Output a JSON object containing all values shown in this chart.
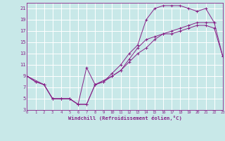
{
  "xlabel": "Windchill (Refroidissement éolien,°C)",
  "bg_color": "#c8e8e8",
  "grid_color": "#ffffff",
  "line_color": "#882288",
  "xlim": [
    0,
    23
  ],
  "ylim": [
    3,
    22
  ],
  "yticks": [
    3,
    5,
    7,
    9,
    11,
    13,
    15,
    17,
    19,
    21
  ],
  "xticks": [
    0,
    1,
    2,
    3,
    4,
    5,
    6,
    7,
    8,
    9,
    10,
    11,
    12,
    13,
    14,
    15,
    16,
    17,
    18,
    19,
    20,
    21,
    22,
    23
  ],
  "line1_x": [
    0,
    1,
    2,
    3,
    4,
    5,
    6,
    7,
    8,
    9,
    10,
    11,
    12,
    13,
    14,
    15,
    16,
    17,
    18,
    19,
    20,
    21,
    22,
    23
  ],
  "line1_y": [
    9,
    8,
    7.5,
    5,
    5,
    5,
    4,
    4,
    7.5,
    8,
    9,
    10,
    12,
    14,
    15.5,
    16,
    16.5,
    16.5,
    17,
    17.5,
    18,
    18,
    17.5,
    12.5
  ],
  "line2_x": [
    0,
    1,
    2,
    3,
    4,
    5,
    6,
    7,
    8,
    9,
    10,
    11,
    12,
    13,
    14,
    15,
    16,
    17,
    18,
    19,
    20,
    21,
    22
  ],
  "line2_y": [
    9,
    8,
    7.5,
    5,
    5,
    5,
    4,
    10.5,
    7.5,
    8,
    9.5,
    11,
    13,
    14.5,
    19,
    21,
    21.5,
    21.5,
    21.5,
    21,
    20.5,
    21,
    18.5
  ],
  "line3_x": [
    0,
    2,
    3,
    4,
    5,
    6,
    7,
    8,
    10,
    11,
    12,
    13,
    14,
    15,
    16,
    17,
    18,
    19,
    20,
    21,
    22,
    23
  ],
  "line3_y": [
    9,
    7.5,
    5,
    5,
    5,
    4,
    4,
    7.5,
    9,
    10,
    11.5,
    13,
    14,
    15.5,
    16.5,
    17,
    17.5,
    18,
    18.5,
    18.5,
    18.5,
    12.5
  ]
}
